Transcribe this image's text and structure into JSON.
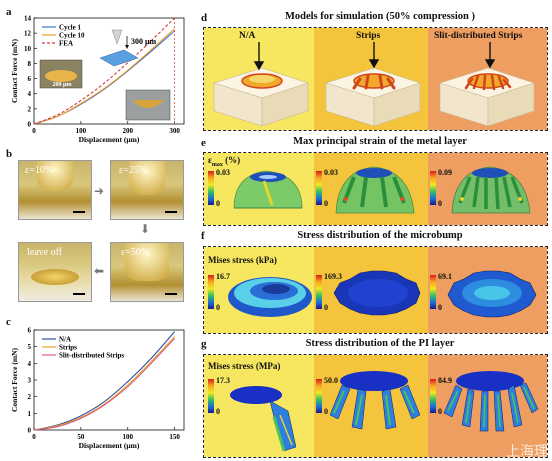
{
  "panel_labels": {
    "a": "a",
    "b": "b",
    "c": "c",
    "d": "d",
    "e": "e",
    "f": "f",
    "g": "g"
  },
  "panel_a": {
    "chart_data": {
      "type": "line",
      "xlabel": "Displacement (μm)",
      "ylabel": "Contact Force (mN)",
      "xlim": [
        0,
        320
      ],
      "ylim": [
        0,
        14
      ],
      "xticks": [
        0,
        100,
        200,
        300
      ],
      "yticks": [
        0,
        2,
        4,
        6,
        8,
        10,
        12,
        14
      ],
      "series": [
        {
          "name": "Cycle 1",
          "color": "#3b78c4",
          "style": "solid",
          "x": [
            0,
            50,
            100,
            150,
            200,
            250,
            300
          ],
          "y": [
            0,
            1.0,
            2.6,
            4.6,
            7.0,
            9.6,
            12.3
          ]
        },
        {
          "name": "Cycle 10",
          "color": "#e89a2b",
          "style": "solid",
          "x": [
            0,
            50,
            100,
            150,
            200,
            250,
            300
          ],
          "y": [
            0,
            1.0,
            2.7,
            4.7,
            7.1,
            9.8,
            12.6
          ]
        },
        {
          "name": "FEA",
          "color": "#d43a3a",
          "style": "dashed",
          "x": [
            0,
            50,
            100,
            150,
            200,
            250,
            300
          ],
          "y": [
            0,
            1.2,
            3.1,
            5.4,
            8.1,
            11.0,
            14.0
          ]
        }
      ]
    },
    "inset_scale": "200 μm",
    "arrow_label": "300 μm"
  },
  "panel_b": {
    "steps": [
      "ε=10%",
      "ε=25%",
      "ε=50%",
      "leave off"
    ]
  },
  "panel_c": {
    "chart_data": {
      "type": "line",
      "xlabel": "Displacement (μm)",
      "ylabel": "Contact Force (mN)",
      "xlim": [
        0,
        160
      ],
      "ylim": [
        0,
        6
      ],
      "xticks": [
        0,
        50,
        100,
        150
      ],
      "yticks": [
        0,
        1,
        2,
        3,
        4,
        5,
        6
      ],
      "series": [
        {
          "name": "N/A",
          "color": "#2f4f9c",
          "x": [
            0,
            25,
            50,
            75,
            100,
            125,
            150
          ],
          "y": [
            0,
            0.3,
            0.85,
            1.7,
            2.9,
            4.3,
            5.9
          ]
        },
        {
          "name": "Strips",
          "color": "#e5a12a",
          "x": [
            0,
            25,
            50,
            75,
            100,
            125,
            150
          ],
          "y": [
            0,
            0.25,
            0.75,
            1.55,
            2.7,
            4.1,
            5.6
          ]
        },
        {
          "name": "Slit-distributed Strips",
          "color": "#d9607d",
          "x": [
            0,
            25,
            50,
            75,
            100,
            125,
            150
          ],
          "y": [
            0,
            0.2,
            0.7,
            1.5,
            2.6,
            4.0,
            5.5
          ]
        }
      ]
    }
  },
  "panel_d": {
    "title": "Models for simulation (50% compression )",
    "models": [
      "N/A",
      "Strips",
      "Slit-distributed Strips"
    ]
  },
  "panel_e": {
    "title": "Max principal strain of the metal layer",
    "unit_label": "ε",
    "unit_sub": "max",
    "unit_suffix": " (%)",
    "maxima": [
      "0.03",
      "0.03",
      "0.09"
    ],
    "min": "0"
  },
  "panel_f": {
    "title": "Stress distribution of the microbump",
    "unit_label": "Mises stress (kPa)",
    "maxima": [
      "16.7",
      "169.3",
      "69.1"
    ],
    "min": "0"
  },
  "panel_g": {
    "title": "Stress distribution of the PI layer",
    "unit_label": "Mises stress (MPa)",
    "maxima": [
      "17.3",
      "50.0",
      "84.9"
    ],
    "min": "0"
  },
  "colors": {
    "band_left": "#f6e45a",
    "band_mid": "#f5c23b",
    "band_right": "#ee9d5f"
  },
  "watermark": "上海理"
}
